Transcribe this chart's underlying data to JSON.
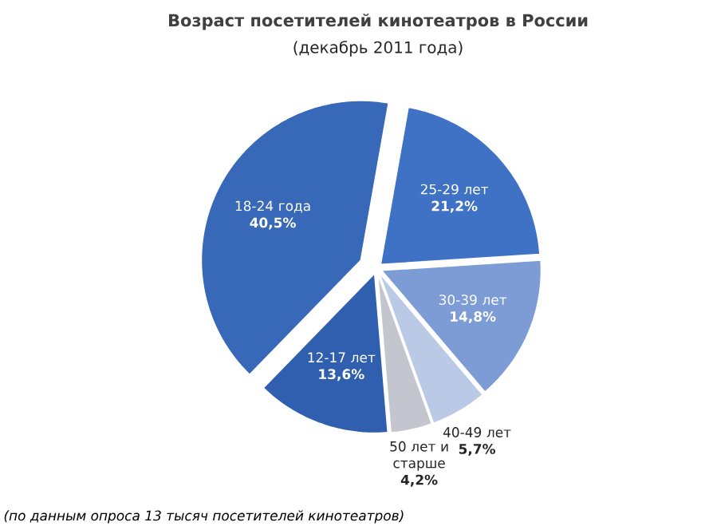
{
  "chart_data": {
    "type": "pie",
    "title": "Возраст посетителей кинотеатров в России",
    "subtitle": "(декабрь 2011 года)",
    "categories": [
      "25-29 лет",
      "30-39 лет",
      "40-49 лет",
      "50 лет и старше",
      "12-17 лет",
      "18-24 года"
    ],
    "values": [
      21.2,
      14.8,
      5.7,
      4.2,
      13.6,
      40.5
    ],
    "value_labels": [
      "21,2%",
      "14,8%",
      "5,7%",
      "4,2%",
      "13,6%",
      "40,5%"
    ],
    "colors": [
      "#3f72c4",
      "#7d9cd6",
      "#b9c9e6",
      "#c4c6cf",
      "#2f5fae",
      "#3868b8"
    ],
    "annotations": [
      "(по данным опроса 13 тысяч посетителей кинотеатров)"
    ]
  }
}
